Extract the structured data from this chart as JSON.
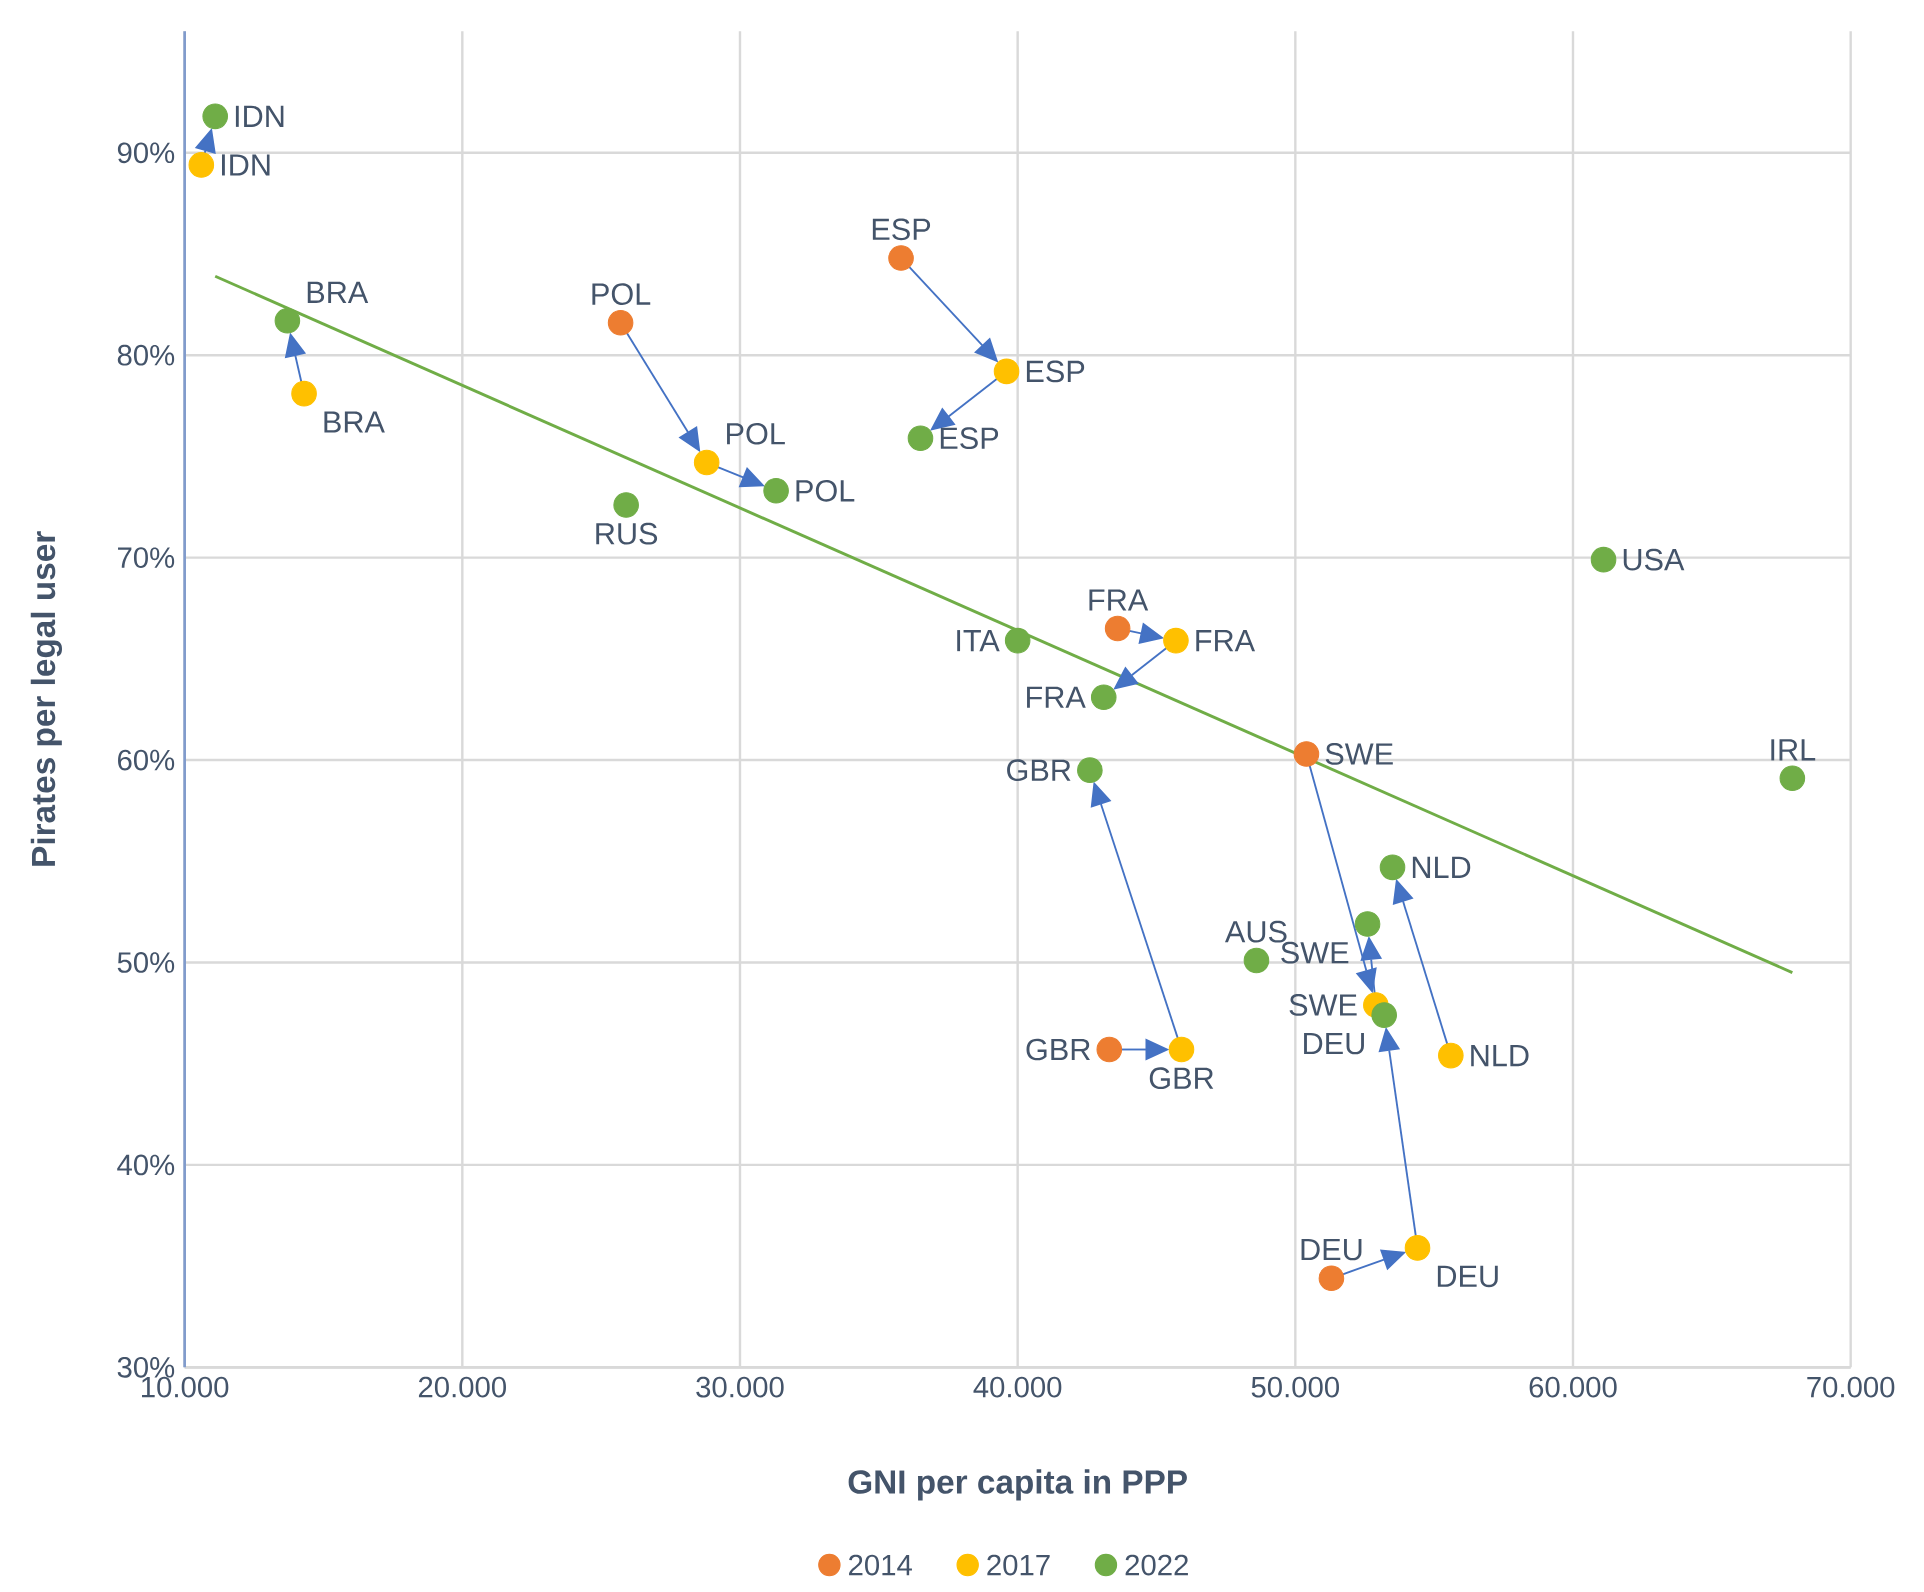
{
  "chart_data": {
    "type": "scatter",
    "xlabel": "GNI per capita in PPP",
    "ylabel": "Pirates per legal user",
    "xlim": [
      10000,
      70000
    ],
    "ylim": [
      30,
      96
    ],
    "xticks": [
      {
        "value": 10000,
        "label": "10.000"
      },
      {
        "value": 20000,
        "label": "20.000"
      },
      {
        "value": 30000,
        "label": "30.000"
      },
      {
        "value": 40000,
        "label": "40.000"
      },
      {
        "value": 50000,
        "label": "50.000"
      },
      {
        "value": 60000,
        "label": "60.000"
      },
      {
        "value": 70000,
        "label": "70.000"
      }
    ],
    "yticks": [
      {
        "value": 30,
        "label": "30%"
      },
      {
        "value": 40,
        "label": "40%"
      },
      {
        "value": 50,
        "label": "50%"
      },
      {
        "value": 60,
        "label": "60%"
      },
      {
        "value": 70,
        "label": "70%"
      },
      {
        "value": 80,
        "label": "80%"
      },
      {
        "value": 90,
        "label": "90%"
      }
    ],
    "grid": true,
    "legend": "bottom",
    "marker": "circle",
    "series": [
      {
        "name": "2014",
        "color": "#ed7d31",
        "x": [
          null,
          null,
          25700,
          35800,
          43600,
          50400,
          43300,
          null,
          51300,
          null,
          null,
          null,
          null,
          null
        ],
        "values": [
          null,
          null,
          81.6,
          84.8,
          66.5,
          60.3,
          45.7,
          null,
          34.4,
          null,
          null,
          null,
          null,
          null
        ],
        "value_labels": [
          null,
          null,
          "POL",
          "ESP",
          "FRA",
          "SWE",
          "GBR",
          null,
          "DEU",
          null,
          null,
          null,
          null,
          null
        ]
      },
      {
        "name": "2017",
        "color": "#ffc000",
        "x": [
          10600,
          14300,
          28800,
          39600,
          45700,
          52900,
          45900,
          55600,
          54400,
          null,
          null,
          null,
          null,
          null
        ],
        "values": [
          89.4,
          78.1,
          74.7,
          79.2,
          65.9,
          47.9,
          45.7,
          45.4,
          35.9,
          null,
          null,
          null,
          null,
          null
        ],
        "value_labels": [
          "IDN",
          "BRA",
          "POL",
          "ESP",
          "FRA",
          "SWE",
          "GBR",
          "NLD",
          "DEU",
          null,
          null,
          null,
          null,
          null
        ]
      },
      {
        "name": "2022",
        "color": "#70ad47",
        "x": [
          11100,
          13700,
          31300,
          36500,
          43100,
          52600,
          42600,
          53500,
          53200,
          25900,
          40000,
          48600,
          61100,
          67900
        ],
        "values": [
          91.8,
          81.7,
          73.3,
          75.9,
          63.1,
          51.9,
          59.5,
          54.7,
          47.4,
          72.6,
          65.9,
          50.1,
          69.9,
          59.1
        ],
        "value_labels": [
          "IDN",
          "BRA",
          "POL",
          "ESP",
          "FRA",
          "SWE",
          "GBR",
          "NLD",
          "DEU",
          "RUS",
          "ITA",
          "AUS",
          "USA",
          "IRL"
        ]
      },
      {
        "type": "line",
        "color": "#70ad47",
        "marker": "none",
        "x": [
          11100,
          67900
        ],
        "values": [
          83.9,
          49.5
        ]
      }
    ]
  }
}
